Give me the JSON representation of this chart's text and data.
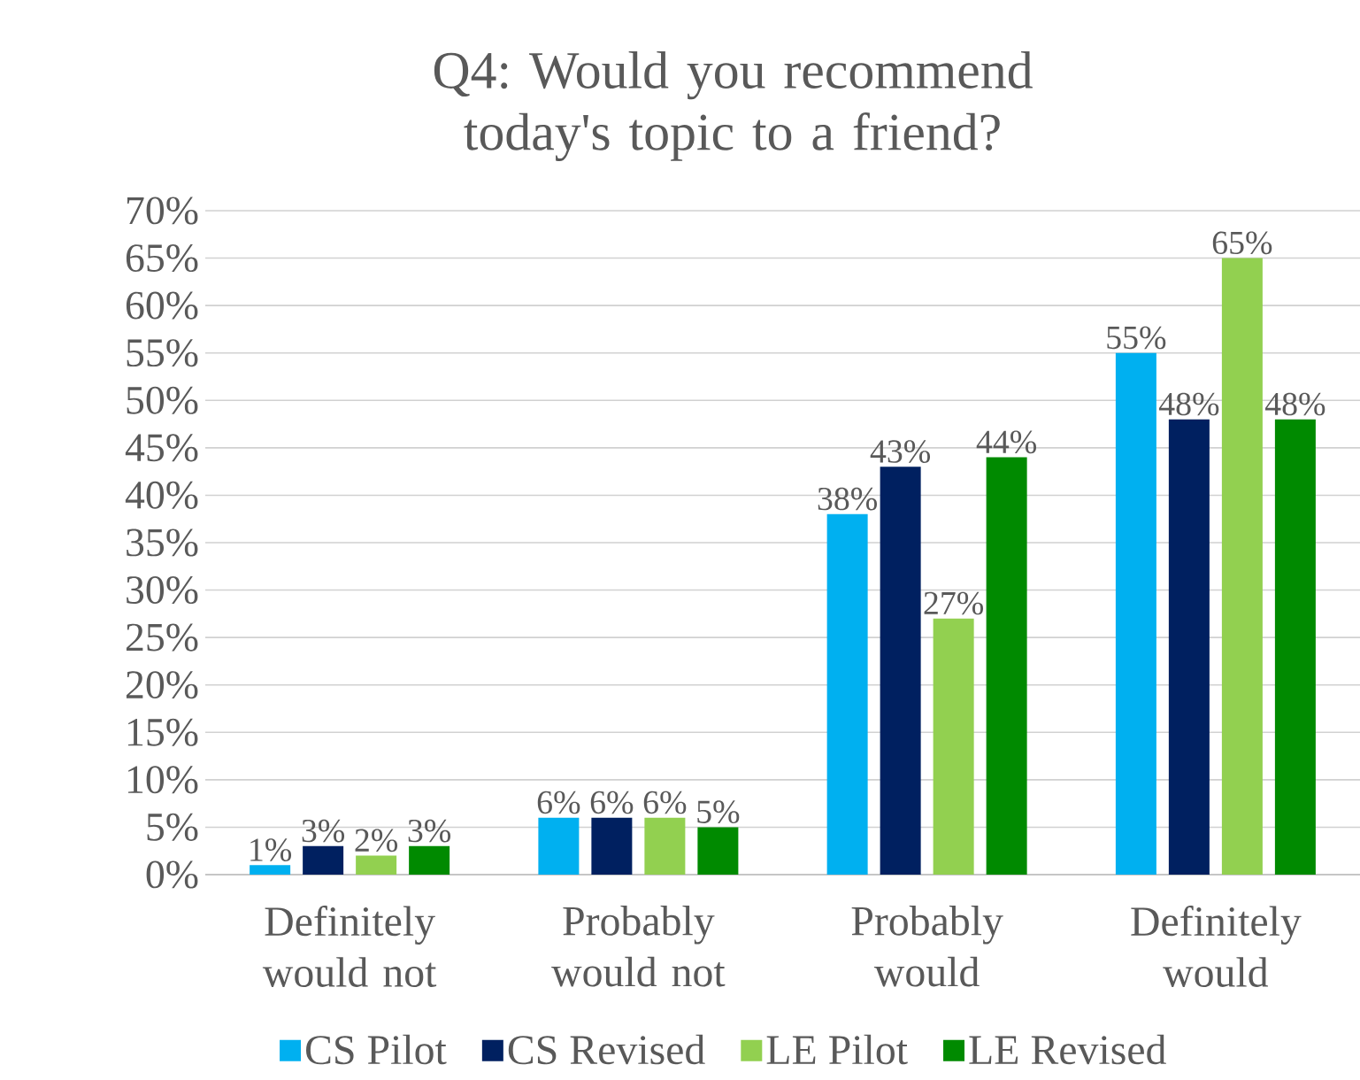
{
  "chart_data": {
    "type": "bar",
    "title": "Q4: Would you recommend today's topic to a friend?",
    "categories": [
      "Definitely would not",
      "Probably would not",
      "Probably would",
      "Definitely would"
    ],
    "series": [
      {
        "name": "CS Pilot",
        "color": "#00b0f0",
        "values": [
          1,
          6,
          38,
          55
        ],
        "value_labels": [
          "1%",
          "6%",
          "38%",
          "55%"
        ]
      },
      {
        "name": "CS Revised",
        "color": "#002060",
        "values": [
          3,
          6,
          43,
          48
        ],
        "value_labels": [
          "3%",
          "6%",
          "43%",
          "48%"
        ]
      },
      {
        "name": "LE Pilot",
        "color": "#92d050",
        "values": [
          2,
          6,
          27,
          65
        ],
        "value_labels": [
          "2%",
          "6%",
          "27%",
          "65%"
        ]
      },
      {
        "name": "LE Revised",
        "color": "#008a00",
        "values": [
          3,
          5,
          44,
          48
        ],
        "value_labels": [
          "3%",
          "5%",
          "44%",
          "48%"
        ]
      }
    ],
    "ylim": [
      0,
      70
    ],
    "yticks": [
      {
        "value": 0,
        "label": "0%"
      },
      {
        "value": 5,
        "label": "5%"
      },
      {
        "value": 10,
        "label": "10%"
      },
      {
        "value": 15,
        "label": "15%"
      },
      {
        "value": 20,
        "label": "20%"
      },
      {
        "value": 25,
        "label": "25%"
      },
      {
        "value": 30,
        "label": "30%"
      },
      {
        "value": 35,
        "label": "35%"
      },
      {
        "value": 40,
        "label": "40%"
      },
      {
        "value": 45,
        "label": "45%"
      },
      {
        "value": 50,
        "label": "50%"
      },
      {
        "value": 55,
        "label": "55%"
      },
      {
        "value": 60,
        "label": "60%"
      },
      {
        "value": 65,
        "label": "65%"
      },
      {
        "value": 70,
        "label": "70%"
      }
    ],
    "grid": "y",
    "legend": "bottom"
  }
}
